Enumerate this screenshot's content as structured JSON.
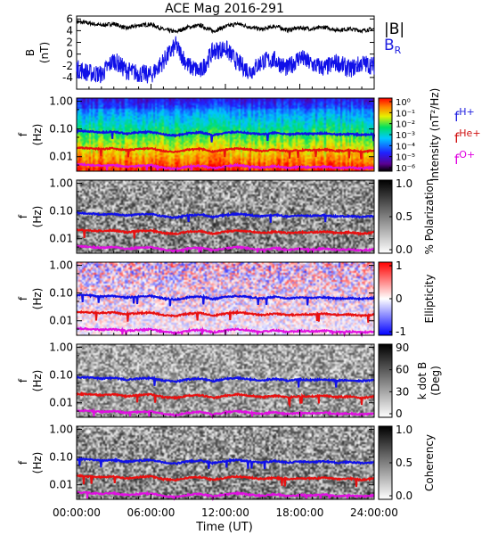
{
  "title": "ACE Mag 2016-291",
  "xlabel": "Time (UT)",
  "x_ticks": [
    "00:00:00",
    "06:00:00",
    "12:00:00",
    "18:00:00",
    "24:00:00"
  ],
  "freq_ticks": [
    "1.00",
    "0.10",
    "0.01"
  ],
  "freq_label_f": "f",
  "freq_label_hz": "(Hz)",
  "line_labels": {
    "h": {
      "main": "f",
      "sub": "H+",
      "color": "#2020e0"
    },
    "he": {
      "main": "f",
      "sub": "He+",
      "color": "#d01010"
    },
    "o": {
      "main": "f",
      "sub": "O+",
      "color": "#e000e0"
    }
  },
  "colors": {
    "blue": "#1010e8",
    "red": "#e81010",
    "magenta": "#e010e0",
    "black": "#000000"
  },
  "chart_data": [
    {
      "type": "line",
      "panel": "field",
      "ylabel_top": "B",
      "ylabel_bottom": "(nT)",
      "y_ticks": [
        "6",
        "4",
        "2",
        "0",
        "-2",
        "-4"
      ],
      "ylim": [
        -6,
        6.5
      ],
      "xlim": [
        0,
        24
      ],
      "series": [
        {
          "name": "|B|",
          "color": "#000000",
          "x": [
            0,
            1,
            2,
            3,
            4,
            5,
            6,
            7,
            8,
            9,
            10,
            11,
            12,
            13,
            14,
            15,
            16,
            17,
            18,
            19,
            20,
            21,
            22,
            23,
            24
          ],
          "y": [
            5.5,
            5.3,
            4.9,
            5.2,
            4.4,
            4.9,
            5.1,
            4.2,
            3.8,
            4.6,
            4.9,
            3.9,
            4.7,
            5.2,
            4.6,
            4.2,
            4.8,
            4.1,
            4.5,
            4.3,
            4.6,
            4.1,
            4.3,
            4.0,
            4.3
          ]
        },
        {
          "name": "B_R",
          "color": "#1010e8",
          "x": [
            0,
            1,
            2,
            3,
            4,
            5,
            6,
            7,
            8,
            9,
            10,
            11,
            12,
            13,
            14,
            15,
            16,
            17,
            18,
            19,
            20,
            21,
            22,
            23,
            24
          ],
          "y": [
            -2.5,
            -3.2,
            -3.5,
            -1.0,
            -2.8,
            -3.3,
            -3.6,
            -1.2,
            1.5,
            -2.0,
            -3.0,
            0.5,
            1.0,
            -1.5,
            -3.0,
            -1.2,
            -1.0,
            -2.5,
            -0.5,
            -1.8,
            -2.4,
            -1.4,
            -2.6,
            -1.6,
            -2.0
          ]
        }
      ],
      "legend": [
        {
          "text": "|B|",
          "color": "#000000"
        },
        {
          "text": "B",
          "sub": "R",
          "color": "#2020e0"
        }
      ]
    },
    {
      "type": "heatmap",
      "panel": "intensity",
      "colorbar_label": "Intensity (nT²/Hz)",
      "colorbar_ticks": [
        "10⁰",
        "10⁻¹",
        "10⁻²",
        "10⁻³",
        "10⁻⁴",
        "10⁻⁵",
        "10⁻⁶"
      ],
      "colormap": "rainbow",
      "scale": "log"
    },
    {
      "type": "heatmap",
      "panel": "polarization",
      "colorbar_label": "% Polarization",
      "colorbar_ticks": [
        "1.0",
        "0.5",
        "0.0"
      ],
      "colormap": "gray"
    },
    {
      "type": "heatmap",
      "panel": "ellipticity",
      "colorbar_label": "Ellipticity",
      "colorbar_ticks": [
        "1",
        "0",
        "-1"
      ],
      "colormap": "red-white-blue"
    },
    {
      "type": "heatmap",
      "panel": "kdotb",
      "colorbar_label_line1": "k dot B",
      "colorbar_label_line2": "(Deg)",
      "colorbar_ticks": [
        "90",
        "60",
        "30",
        "0"
      ],
      "colormap": "gray"
    },
    {
      "type": "heatmap",
      "panel": "coherency",
      "colorbar_label": "Coherency",
      "colorbar_ticks": [
        "1.0",
        "0.5",
        "0.0"
      ],
      "colormap": "gray"
    }
  ],
  "gyro_lines": {
    "x": [
      0,
      1,
      2,
      3,
      4,
      5,
      6,
      7,
      8,
      9,
      10,
      11,
      12,
      13,
      14,
      15,
      16,
      17,
      18,
      19,
      20,
      21,
      22,
      23,
      24
    ],
    "f_h": [
      0.085,
      0.082,
      0.075,
      0.079,
      0.068,
      0.075,
      0.078,
      0.064,
      0.058,
      0.07,
      0.075,
      0.06,
      0.072,
      0.079,
      0.07,
      0.064,
      0.073,
      0.063,
      0.069,
      0.066,
      0.07,
      0.063,
      0.066,
      0.061,
      0.066
    ],
    "f_he": [
      0.021,
      0.02,
      0.019,
      0.02,
      0.017,
      0.019,
      0.02,
      0.016,
      0.015,
      0.018,
      0.019,
      0.015,
      0.018,
      0.02,
      0.018,
      0.016,
      0.018,
      0.016,
      0.017,
      0.017,
      0.018,
      0.016,
      0.017,
      0.015,
      0.017
    ],
    "f_o": [
      0.0053,
      0.0051,
      0.0047,
      0.005,
      0.0043,
      0.0047,
      0.0049,
      0.004,
      0.0036,
      0.0044,
      0.0047,
      0.0038,
      0.0045,
      0.005,
      0.0044,
      0.004,
      0.0046,
      0.0039,
      0.0043,
      0.0041,
      0.0044,
      0.0039,
      0.0041,
      0.0038,
      0.0041
    ],
    "freq_range": [
      0.003,
      1.3
    ]
  }
}
